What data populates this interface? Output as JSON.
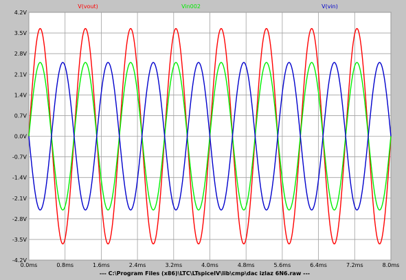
{
  "chart_data": {
    "type": "line",
    "title": "",
    "xlabel": "",
    "ylabel": "",
    "xlim": [
      0,
      8
    ],
    "ylim": [
      -4.2,
      4.2
    ],
    "x_ticks": [
      0,
      0.8,
      1.6,
      2.4,
      3.2,
      4.0,
      4.8,
      5.6,
      6.4,
      7.2,
      8.0
    ],
    "x_tick_labels": [
      "0.0ms",
      "0.8ms",
      "1.6ms",
      "2.4ms",
      "3.2ms",
      "4.0ms",
      "4.8ms",
      "5.6ms",
      "6.4ms",
      "7.2ms",
      "8.0ms"
    ],
    "y_ticks": [
      4.2,
      3.5,
      2.8,
      2.1,
      1.4,
      0.7,
      0.0,
      -0.7,
      -1.4,
      -2.1,
      -2.8,
      -3.5,
      -4.2
    ],
    "y_tick_labels": [
      "4.2V",
      "3.5V",
      "2.8V",
      "2.1V",
      "1.4V",
      "0.7V",
      "0.0V",
      "-0.7V",
      "-1.4V",
      "-2.1V",
      "-2.8V",
      "-3.5V",
      "-4.2V"
    ],
    "grid": true,
    "legend_position": "top",
    "series": [
      {
        "name": "V(vout)",
        "color": "#ff0000",
        "amplitude": 3.65,
        "frequency_khz": 1.0,
        "phase_deg": 0
      },
      {
        "name": "Vin002",
        "color": "#00ee00",
        "amplitude": 2.5,
        "frequency_khz": 1.0,
        "phase_deg": 0
      },
      {
        "name": "V(vin)",
        "color": "#0000cc",
        "amplitude": 2.5,
        "frequency_khz": 1.0,
        "phase_deg": 180
      }
    ]
  },
  "footer": {
    "file_path": "---  C:\\Program Files (x86)\\LTC\\LTspiceIV\\lib\\cmp\\dac izlaz 6N6.raw  ---"
  },
  "colors": {
    "background": "#ffffff",
    "grid": "#a0a0a0",
    "frame": "#c4c4c4"
  }
}
